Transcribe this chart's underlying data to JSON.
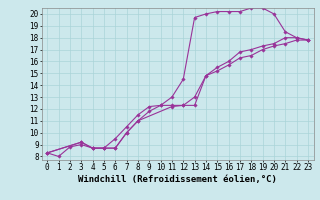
{
  "xlabel": "Windchill (Refroidissement éolien,°C)",
  "ylabel": "",
  "xlim": [
    -0.5,
    23.5
  ],
  "ylim": [
    7.7,
    20.5
  ],
  "xticks": [
    0,
    1,
    2,
    3,
    4,
    5,
    6,
    7,
    8,
    9,
    10,
    11,
    12,
    13,
    14,
    15,
    16,
    17,
    18,
    19,
    20,
    21,
    22,
    23
  ],
  "yticks": [
    8,
    9,
    10,
    11,
    12,
    13,
    14,
    15,
    16,
    17,
    18,
    19,
    20
  ],
  "bg_color": "#cce8ec",
  "line_color": "#993399",
  "curve1_x": [
    0,
    1,
    2,
    3,
    4,
    5,
    6,
    7,
    8,
    9,
    10,
    11,
    12,
    13,
    14,
    15,
    16,
    17,
    18,
    19,
    20,
    21,
    22,
    23
  ],
  "curve1_y": [
    8.3,
    8.0,
    8.8,
    9.0,
    8.7,
    8.7,
    9.5,
    10.5,
    11.5,
    12.2,
    12.3,
    13.0,
    14.5,
    19.7,
    20.0,
    20.2,
    20.2,
    20.2,
    20.5,
    20.5,
    20.0,
    18.5,
    18.0,
    17.8
  ],
  "curve2_x": [
    0,
    3,
    4,
    5,
    6,
    7,
    8,
    11,
    12,
    13,
    14,
    15,
    16,
    17,
    18,
    19,
    20,
    21,
    22,
    23
  ],
  "curve2_y": [
    8.3,
    9.2,
    8.7,
    8.7,
    8.7,
    10.0,
    11.0,
    12.2,
    12.3,
    12.3,
    14.8,
    15.5,
    16.0,
    16.8,
    17.0,
    17.3,
    17.5,
    18.0,
    18.0,
    17.8
  ],
  "curve3_x": [
    0,
    3,
    4,
    5,
    6,
    7,
    8,
    9,
    10,
    11,
    12,
    13,
    14,
    15,
    16,
    17,
    18,
    19,
    20,
    21,
    22,
    23
  ],
  "curve3_y": [
    8.3,
    9.2,
    8.7,
    8.7,
    8.7,
    10.0,
    11.0,
    11.8,
    12.3,
    12.3,
    12.3,
    13.0,
    14.8,
    15.2,
    15.7,
    16.3,
    16.5,
    17.0,
    17.3,
    17.5,
    17.8,
    17.8
  ],
  "grid_color": "#aad4d8",
  "font_family": "monospace",
  "xlabel_fontsize": 6.5,
  "tick_fontsize": 5.5,
  "marker": "D",
  "marker_size": 1.8,
  "line_width": 0.8,
  "spine_color": "#888888"
}
